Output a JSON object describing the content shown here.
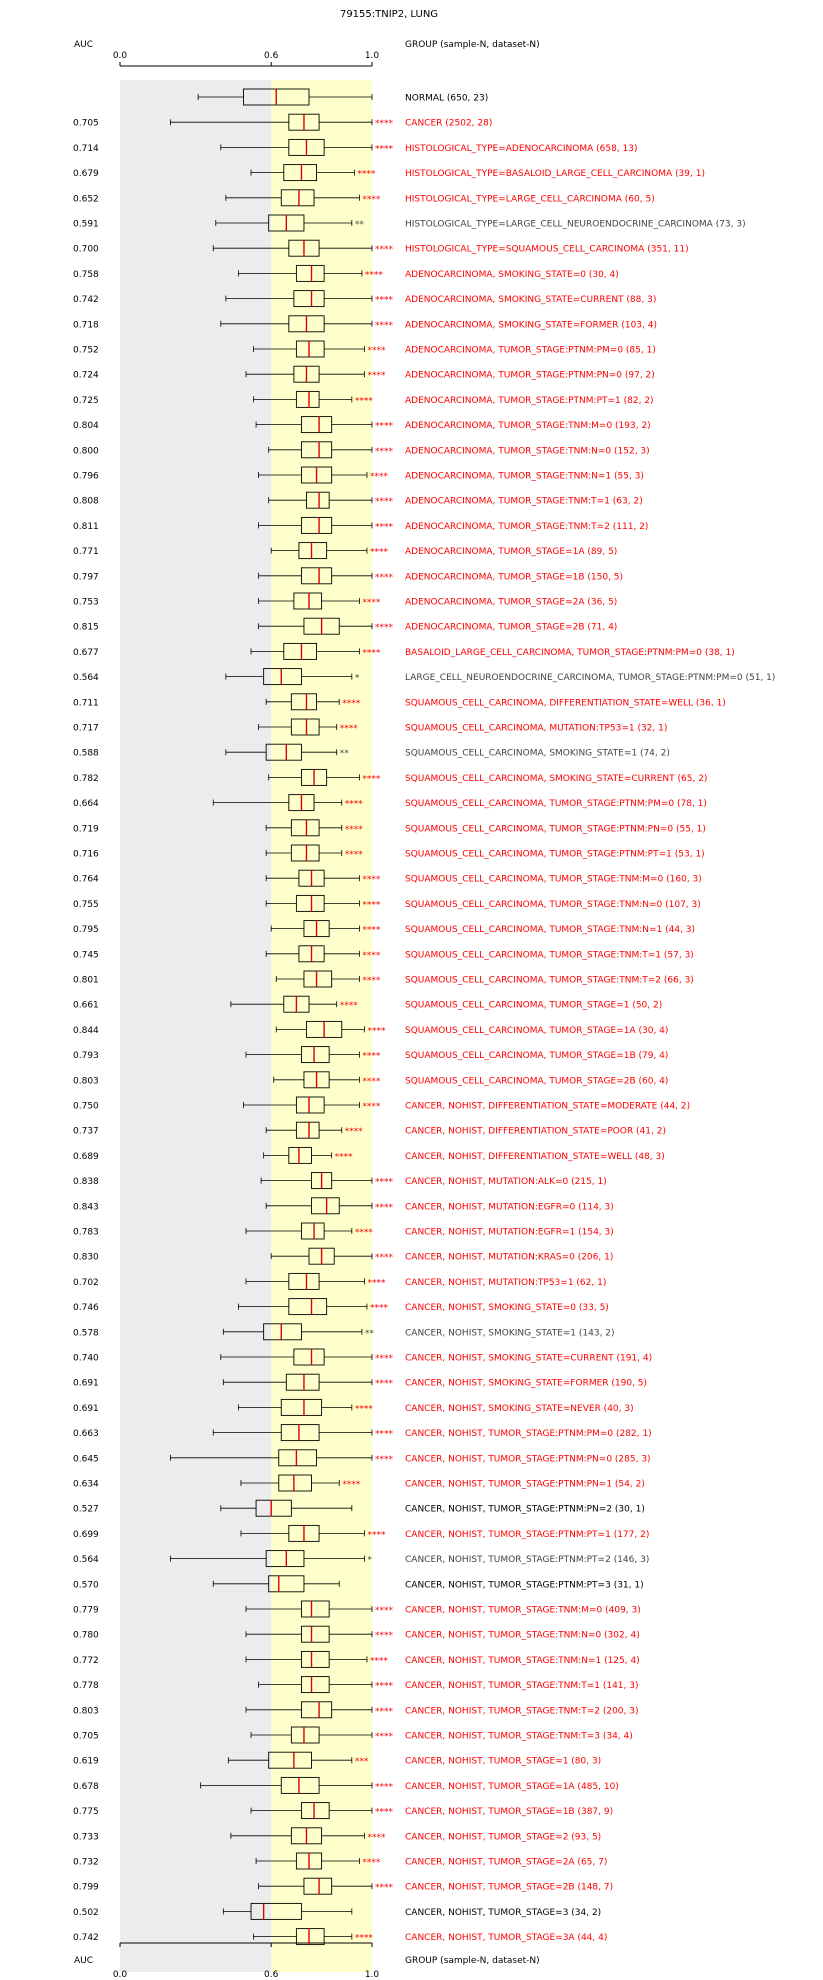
{
  "chart_data": {
    "type": "boxplot",
    "title": "79155:TNIP2, LUNG",
    "auc_header": "AUC",
    "group_header": "GROUP (sample-N, dataset-N)",
    "xlim": [
      0.0,
      1.0
    ],
    "x_ticks": [
      "0.0",
      "0.6",
      "1.0"
    ],
    "tick_values": [
      0.0,
      0.6,
      1.0
    ],
    "shaded_regions": [
      {
        "from": 0.0,
        "to": 0.6,
        "color": "#ececec"
      },
      {
        "from": 0.6,
        "to": 1.0,
        "color": "#ffffcc"
      }
    ],
    "colors": {
      "significant": "#ff0000",
      "not_significant": "#000000",
      "grey_text": "#444444",
      "median": "#dd0000"
    },
    "rows": [
      {
        "auc": "",
        "label": "NORMAL (650, 23)",
        "stars": "",
        "color": "black",
        "box": [
          0.31,
          0.49,
          0.62,
          0.75,
          1.0
        ]
      },
      {
        "auc": "0.705",
        "label": "CANCER (2502, 28)",
        "stars": "****",
        "color": "red",
        "box": [
          0.2,
          0.67,
          0.73,
          0.79,
          1.0
        ]
      },
      {
        "auc": "0.714",
        "label": "HISTOLOGICAL_TYPE=ADENOCARCINOMA (658, 13)",
        "stars": "****",
        "color": "red",
        "box": [
          0.4,
          0.67,
          0.74,
          0.81,
          1.0
        ]
      },
      {
        "auc": "0.679",
        "label": "HISTOLOGICAL_TYPE=BASALOID_LARGE_CELL_CARCINOMA (39, 1)",
        "stars": "****",
        "color": "red",
        "box": [
          0.52,
          0.65,
          0.72,
          0.78,
          0.93
        ]
      },
      {
        "auc": "0.652",
        "label": "HISTOLOGICAL_TYPE=LARGE_CELL_CARCINOMA (60, 5)",
        "stars": "****",
        "color": "red",
        "box": [
          0.42,
          0.64,
          0.71,
          0.77,
          0.95
        ]
      },
      {
        "auc": "0.591",
        "label": "HISTOLOGICAL_TYPE=LARGE_CELL_NEUROENDOCRINE_CARCINOMA (73, 3)",
        "stars": "**",
        "color": "grey",
        "box": [
          0.38,
          0.59,
          0.66,
          0.73,
          0.92
        ]
      },
      {
        "auc": "0.700",
        "label": "HISTOLOGICAL_TYPE=SQUAMOUS_CELL_CARCINOMA (351, 11)",
        "stars": "****",
        "color": "red",
        "box": [
          0.37,
          0.67,
          0.73,
          0.79,
          1.0
        ]
      },
      {
        "auc": "0.758",
        "label": "ADENOCARCINOMA, SMOKING_STATE=0 (30, 4)",
        "stars": "****",
        "color": "red",
        "box": [
          0.47,
          0.7,
          0.76,
          0.81,
          0.96
        ]
      },
      {
        "auc": "0.742",
        "label": "ADENOCARCINOMA, SMOKING_STATE=CURRENT (88, 3)",
        "stars": "****",
        "color": "red",
        "box": [
          0.42,
          0.69,
          0.76,
          0.81,
          1.0
        ]
      },
      {
        "auc": "0.718",
        "label": "ADENOCARCINOMA, SMOKING_STATE=FORMER (103, 4)",
        "stars": "****",
        "color": "red",
        "box": [
          0.4,
          0.67,
          0.74,
          0.81,
          1.0
        ]
      },
      {
        "auc": "0.752",
        "label": "ADENOCARCINOMA, TUMOR_STAGE:PTNM:PM=0 (85, 1)",
        "stars": "****",
        "color": "red",
        "box": [
          0.53,
          0.7,
          0.75,
          0.81,
          0.97
        ]
      },
      {
        "auc": "0.724",
        "label": "ADENOCARCINOMA, TUMOR_STAGE:PTNM:PN=0 (97, 2)",
        "stars": "****",
        "color": "red",
        "box": [
          0.5,
          0.69,
          0.74,
          0.79,
          0.97
        ]
      },
      {
        "auc": "0.725",
        "label": "ADENOCARCINOMA, TUMOR_STAGE:PTNM:PT=1 (82, 2)",
        "stars": "****",
        "color": "red",
        "box": [
          0.53,
          0.7,
          0.75,
          0.79,
          0.92
        ]
      },
      {
        "auc": "0.804",
        "label": "ADENOCARCINOMA, TUMOR_STAGE:TNM:M=0 (193, 2)",
        "stars": "****",
        "color": "red",
        "box": [
          0.54,
          0.72,
          0.79,
          0.84,
          1.0
        ]
      },
      {
        "auc": "0.800",
        "label": "ADENOCARCINOMA, TUMOR_STAGE:TNM:N=0 (152, 3)",
        "stars": "****",
        "color": "red",
        "box": [
          0.59,
          0.72,
          0.79,
          0.84,
          1.0
        ]
      },
      {
        "auc": "0.796",
        "label": "ADENOCARCINOMA, TUMOR_STAGE:TNM:N=1 (55, 3)",
        "stars": "****",
        "color": "red",
        "box": [
          0.55,
          0.72,
          0.78,
          0.84,
          0.98
        ]
      },
      {
        "auc": "0.808",
        "label": "ADENOCARCINOMA, TUMOR_STAGE:TNM:T=1 (63, 2)",
        "stars": "****",
        "color": "red",
        "box": [
          0.59,
          0.74,
          0.79,
          0.83,
          1.0
        ]
      },
      {
        "auc": "0.811",
        "label": "ADENOCARCINOMA, TUMOR_STAGE:TNM:T=2 (111, 2)",
        "stars": "****",
        "color": "red",
        "box": [
          0.55,
          0.72,
          0.79,
          0.84,
          1.0
        ]
      },
      {
        "auc": "0.771",
        "label": "ADENOCARCINOMA, TUMOR_STAGE=1A (89, 5)",
        "stars": "****",
        "color": "red",
        "box": [
          0.6,
          0.71,
          0.76,
          0.82,
          0.98
        ]
      },
      {
        "auc": "0.797",
        "label": "ADENOCARCINOMA, TUMOR_STAGE=1B (150, 5)",
        "stars": "****",
        "color": "red",
        "box": [
          0.55,
          0.72,
          0.79,
          0.84,
          1.0
        ]
      },
      {
        "auc": "0.753",
        "label": "ADENOCARCINOMA, TUMOR_STAGE=2A (36, 5)",
        "stars": "****",
        "color": "red",
        "box": [
          0.55,
          0.69,
          0.75,
          0.8,
          0.95
        ]
      },
      {
        "auc": "0.815",
        "label": "ADENOCARCINOMA, TUMOR_STAGE=2B (71, 4)",
        "stars": "****",
        "color": "red",
        "box": [
          0.55,
          0.73,
          0.8,
          0.87,
          1.0
        ]
      },
      {
        "auc": "0.677",
        "label": "BASALOID_LARGE_CELL_CARCINOMA, TUMOR_STAGE:PTNM:PM=0 (38, 1)",
        "stars": "****",
        "color": "red",
        "box": [
          0.52,
          0.65,
          0.72,
          0.78,
          0.95
        ]
      },
      {
        "auc": "0.564",
        "label": "LARGE_CELL_NEUROENDOCRINE_CARCINOMA, TUMOR_STAGE:PTNM:PM=0 (51, 1)",
        "stars": "*",
        "color": "grey",
        "box": [
          0.42,
          0.57,
          0.64,
          0.72,
          0.92
        ]
      },
      {
        "auc": "0.711",
        "label": "SQUAMOUS_CELL_CARCINOMA, DIFFERENTIATION_STATE=WELL (36, 1)",
        "stars": "****",
        "color": "red",
        "box": [
          0.58,
          0.68,
          0.74,
          0.78,
          0.87
        ]
      },
      {
        "auc": "0.717",
        "label": "SQUAMOUS_CELL_CARCINOMA, MUTATION:TP53=1 (32, 1)",
        "stars": "****",
        "color": "red",
        "box": [
          0.55,
          0.68,
          0.74,
          0.79,
          0.86
        ]
      },
      {
        "auc": "0.588",
        "label": "SQUAMOUS_CELL_CARCINOMA, SMOKING_STATE=1 (74, 2)",
        "stars": "**",
        "color": "grey",
        "box": [
          0.42,
          0.58,
          0.66,
          0.72,
          0.86
        ]
      },
      {
        "auc": "0.782",
        "label": "SQUAMOUS_CELL_CARCINOMA, SMOKING_STATE=CURRENT (65, 2)",
        "stars": "****",
        "color": "red",
        "box": [
          0.59,
          0.72,
          0.77,
          0.82,
          0.95
        ]
      },
      {
        "auc": "0.664",
        "label": "SQUAMOUS_CELL_CARCINOMA, TUMOR_STAGE:PTNM:PM=0 (78, 1)",
        "stars": "****",
        "color": "red",
        "box": [
          0.37,
          0.67,
          0.72,
          0.77,
          0.88
        ]
      },
      {
        "auc": "0.719",
        "label": "SQUAMOUS_CELL_CARCINOMA, TUMOR_STAGE:PTNM:PN=0 (55, 1)",
        "stars": "****",
        "color": "red",
        "box": [
          0.58,
          0.68,
          0.74,
          0.79,
          0.88
        ]
      },
      {
        "auc": "0.716",
        "label": "SQUAMOUS_CELL_CARCINOMA, TUMOR_STAGE:PTNM:PT=1 (53, 1)",
        "stars": "****",
        "color": "red",
        "box": [
          0.58,
          0.68,
          0.74,
          0.79,
          0.88
        ]
      },
      {
        "auc": "0.764",
        "label": "SQUAMOUS_CELL_CARCINOMA, TUMOR_STAGE:TNM:M=0 (160, 3)",
        "stars": "****",
        "color": "red",
        "box": [
          0.58,
          0.71,
          0.76,
          0.81,
          0.95
        ]
      },
      {
        "auc": "0.755",
        "label": "SQUAMOUS_CELL_CARCINOMA, TUMOR_STAGE:TNM:N=0 (107, 3)",
        "stars": "****",
        "color": "red",
        "box": [
          0.58,
          0.7,
          0.76,
          0.81,
          0.95
        ]
      },
      {
        "auc": "0.795",
        "label": "SQUAMOUS_CELL_CARCINOMA, TUMOR_STAGE:TNM:N=1 (44, 3)",
        "stars": "****",
        "color": "red",
        "box": [
          0.6,
          0.73,
          0.78,
          0.83,
          0.95
        ]
      },
      {
        "auc": "0.745",
        "label": "SQUAMOUS_CELL_CARCINOMA, TUMOR_STAGE:TNM:T=1 (57, 3)",
        "stars": "****",
        "color": "red",
        "box": [
          0.58,
          0.71,
          0.76,
          0.81,
          0.95
        ]
      },
      {
        "auc": "0.801",
        "label": "SQUAMOUS_CELL_CARCINOMA, TUMOR_STAGE:TNM:T=2 (66, 3)",
        "stars": "****",
        "color": "red",
        "box": [
          0.62,
          0.73,
          0.78,
          0.84,
          0.95
        ]
      },
      {
        "auc": "0.661",
        "label": "SQUAMOUS_CELL_CARCINOMA, TUMOR_STAGE=1 (50, 2)",
        "stars": "****",
        "color": "red",
        "box": [
          0.44,
          0.65,
          0.7,
          0.75,
          0.86
        ]
      },
      {
        "auc": "0.844",
        "label": "SQUAMOUS_CELL_CARCINOMA, TUMOR_STAGE=1A (30, 4)",
        "stars": "****",
        "color": "red",
        "box": [
          0.62,
          0.74,
          0.81,
          0.88,
          0.97
        ]
      },
      {
        "auc": "0.793",
        "label": "SQUAMOUS_CELL_CARCINOMA, TUMOR_STAGE=1B (79, 4)",
        "stars": "****",
        "color": "red",
        "box": [
          0.5,
          0.72,
          0.77,
          0.83,
          0.95
        ]
      },
      {
        "auc": "0.803",
        "label": "SQUAMOUS_CELL_CARCINOMA, TUMOR_STAGE=2B (60, 4)",
        "stars": "****",
        "color": "red",
        "box": [
          0.61,
          0.73,
          0.78,
          0.83,
          0.95
        ]
      },
      {
        "auc": "0.750",
        "label": "CANCER, NOHIST, DIFFERENTIATION_STATE=MODERATE (44, 2)",
        "stars": "****",
        "color": "red",
        "box": [
          0.49,
          0.7,
          0.75,
          0.81,
          0.95
        ]
      },
      {
        "auc": "0.737",
        "label": "CANCER, NOHIST, DIFFERENTIATION_STATE=POOR (41, 2)",
        "stars": "****",
        "color": "red",
        "box": [
          0.58,
          0.7,
          0.75,
          0.79,
          0.88
        ]
      },
      {
        "auc": "0.689",
        "label": "CANCER, NOHIST, DIFFERENTIATION_STATE=WELL (48, 3)",
        "stars": "****",
        "color": "red",
        "box": [
          0.57,
          0.67,
          0.71,
          0.76,
          0.84
        ]
      },
      {
        "auc": "0.838",
        "label": "CANCER, NOHIST, MUTATION:ALK=0 (215, 1)",
        "stars": "****",
        "color": "red",
        "box": [
          0.56,
          0.76,
          0.8,
          0.84,
          1.0
        ]
      },
      {
        "auc": "0.843",
        "label": "CANCER, NOHIST, MUTATION:EGFR=0 (114, 3)",
        "stars": "****",
        "color": "red",
        "box": [
          0.58,
          0.76,
          0.82,
          0.87,
          1.0
        ]
      },
      {
        "auc": "0.783",
        "label": "CANCER, NOHIST, MUTATION:EGFR=1 (154, 3)",
        "stars": "****",
        "color": "red",
        "box": [
          0.5,
          0.72,
          0.77,
          0.81,
          0.92
        ]
      },
      {
        "auc": "0.830",
        "label": "CANCER, NOHIST, MUTATION:KRAS=0 (206, 1)",
        "stars": "****",
        "color": "red",
        "box": [
          0.6,
          0.75,
          0.8,
          0.85,
          1.0
        ]
      },
      {
        "auc": "0.702",
        "label": "CANCER, NOHIST, MUTATION:TP53=1 (62, 1)",
        "stars": "****",
        "color": "red",
        "box": [
          0.5,
          0.67,
          0.74,
          0.79,
          0.97
        ]
      },
      {
        "auc": "0.746",
        "label": "CANCER, NOHIST, SMOKING_STATE=0 (33, 5)",
        "stars": "****",
        "color": "red",
        "box": [
          0.47,
          0.67,
          0.76,
          0.82,
          0.98
        ]
      },
      {
        "auc": "0.578",
        "label": "CANCER, NOHIST, SMOKING_STATE=1 (143, 2)",
        "stars": "**",
        "color": "grey",
        "box": [
          0.41,
          0.57,
          0.64,
          0.72,
          0.96
        ]
      },
      {
        "auc": "0.740",
        "label": "CANCER, NOHIST, SMOKING_STATE=CURRENT (191, 4)",
        "stars": "****",
        "color": "red",
        "box": [
          0.4,
          0.69,
          0.76,
          0.81,
          1.0
        ]
      },
      {
        "auc": "0.691",
        "label": "CANCER, NOHIST, SMOKING_STATE=FORMER (190, 5)",
        "stars": "****",
        "color": "red",
        "box": [
          0.41,
          0.66,
          0.73,
          0.79,
          1.0
        ]
      },
      {
        "auc": "0.691",
        "label": "CANCER, NOHIST, SMOKING_STATE=NEVER (40, 3)",
        "stars": "****",
        "color": "red",
        "box": [
          0.47,
          0.64,
          0.73,
          0.8,
          0.92
        ]
      },
      {
        "auc": "0.663",
        "label": "CANCER, NOHIST, TUMOR_STAGE:PTNM:PM=0 (282, 1)",
        "stars": "****",
        "color": "red",
        "box": [
          0.37,
          0.64,
          0.71,
          0.79,
          1.0
        ]
      },
      {
        "auc": "0.645",
        "label": "CANCER, NOHIST, TUMOR_STAGE:PTNM:PN=0 (285, 3)",
        "stars": "****",
        "color": "red",
        "box": [
          0.2,
          0.63,
          0.7,
          0.78,
          1.0
        ]
      },
      {
        "auc": "0.634",
        "label": "CANCER, NOHIST, TUMOR_STAGE:PTNM:PN=1 (54, 2)",
        "stars": "****",
        "color": "red",
        "box": [
          0.48,
          0.63,
          0.69,
          0.76,
          0.87
        ]
      },
      {
        "auc": "0.527",
        "label": "CANCER, NOHIST, TUMOR_STAGE:PTNM:PN=2 (30, 1)",
        "stars": "",
        "color": "black",
        "box": [
          0.4,
          0.54,
          0.6,
          0.68,
          0.92
        ]
      },
      {
        "auc": "0.699",
        "label": "CANCER, NOHIST, TUMOR_STAGE:PTNM:PT=1 (177, 2)",
        "stars": "****",
        "color": "red",
        "box": [
          0.48,
          0.67,
          0.73,
          0.79,
          0.97
        ]
      },
      {
        "auc": "0.564",
        "label": "CANCER, NOHIST, TUMOR_STAGE:PTNM:PT=2 (146, 3)",
        "stars": "*",
        "color": "grey",
        "box": [
          0.2,
          0.58,
          0.66,
          0.73,
          0.97
        ]
      },
      {
        "auc": "0.570",
        "label": "CANCER, NOHIST, TUMOR_STAGE:PTNM:PT=3 (31, 1)",
        "stars": "",
        "color": "black",
        "box": [
          0.37,
          0.59,
          0.63,
          0.73,
          0.87
        ]
      },
      {
        "auc": "0.779",
        "label": "CANCER, NOHIST, TUMOR_STAGE:TNM:M=0 (409, 3)",
        "stars": "****",
        "color": "red",
        "box": [
          0.5,
          0.72,
          0.76,
          0.83,
          1.0
        ]
      },
      {
        "auc": "0.780",
        "label": "CANCER, NOHIST, TUMOR_STAGE:TNM:N=0 (302, 4)",
        "stars": "****",
        "color": "red",
        "box": [
          0.5,
          0.72,
          0.76,
          0.83,
          1.0
        ]
      },
      {
        "auc": "0.772",
        "label": "CANCER, NOHIST, TUMOR_STAGE:TNM:N=1 (125, 4)",
        "stars": "****",
        "color": "red",
        "box": [
          0.5,
          0.72,
          0.76,
          0.83,
          0.98
        ]
      },
      {
        "auc": "0.778",
        "label": "CANCER, NOHIST, TUMOR_STAGE:TNM:T=1 (141, 3)",
        "stars": "****",
        "color": "red",
        "box": [
          0.55,
          0.72,
          0.76,
          0.83,
          1.0
        ]
      },
      {
        "auc": "0.803",
        "label": "CANCER, NOHIST, TUMOR_STAGE:TNM:T=2 (200, 3)",
        "stars": "****",
        "color": "red",
        "box": [
          0.5,
          0.72,
          0.79,
          0.84,
          1.0
        ]
      },
      {
        "auc": "0.705",
        "label": "CANCER, NOHIST, TUMOR_STAGE:TNM:T=3 (34, 4)",
        "stars": "****",
        "color": "red",
        "box": [
          0.52,
          0.68,
          0.73,
          0.79,
          1.0
        ]
      },
      {
        "auc": "0.619",
        "label": "CANCER, NOHIST, TUMOR_STAGE=1 (80, 3)",
        "stars": "***",
        "color": "red",
        "box": [
          0.43,
          0.59,
          0.69,
          0.76,
          0.92
        ]
      },
      {
        "auc": "0.678",
        "label": "CANCER, NOHIST, TUMOR_STAGE=1A (485, 10)",
        "stars": "****",
        "color": "red",
        "box": [
          0.32,
          0.64,
          0.71,
          0.79,
          1.0
        ]
      },
      {
        "auc": "0.775",
        "label": "CANCER, NOHIST, TUMOR_STAGE=1B (387, 9)",
        "stars": "****",
        "color": "red",
        "box": [
          0.52,
          0.72,
          0.77,
          0.83,
          1.0
        ]
      },
      {
        "auc": "0.733",
        "label": "CANCER, NOHIST, TUMOR_STAGE=2 (93, 5)",
        "stars": "****",
        "color": "red",
        "box": [
          0.44,
          0.68,
          0.74,
          0.8,
          0.97
        ]
      },
      {
        "auc": "0.732",
        "label": "CANCER, NOHIST, TUMOR_STAGE=2A (65, 7)",
        "stars": "****",
        "color": "red",
        "box": [
          0.54,
          0.7,
          0.75,
          0.8,
          0.95
        ]
      },
      {
        "auc": "0.799",
        "label": "CANCER, NOHIST, TUMOR_STAGE=2B (148, 7)",
        "stars": "****",
        "color": "red",
        "box": [
          0.55,
          0.73,
          0.79,
          0.84,
          1.0
        ]
      },
      {
        "auc": "0.502",
        "label": "CANCER, NOHIST, TUMOR_STAGE=3 (34, 2)",
        "stars": "",
        "color": "black",
        "box": [
          0.41,
          0.52,
          0.57,
          0.72,
          0.92
        ]
      },
      {
        "auc": "0.742",
        "label": "CANCER, NOHIST, TUMOR_STAGE=3A (44, 4)",
        "stars": "****",
        "color": "red",
        "box": [
          0.53,
          0.7,
          0.75,
          0.81,
          0.92
        ]
      }
    ]
  }
}
